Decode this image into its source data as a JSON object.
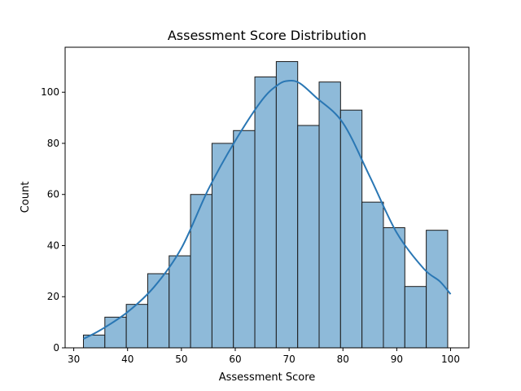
{
  "chart_data": {
    "type": "bar",
    "title": "Assessment Score Distribution",
    "xlabel": "Assessment Score",
    "ylabel": "Count",
    "xlim": [
      28.4,
      103.4
    ],
    "ylim": [
      0,
      117.6
    ],
    "xticks": [
      30,
      40,
      50,
      60,
      70,
      80,
      90,
      100
    ],
    "yticks": [
      0,
      20,
      40,
      60,
      80,
      100
    ],
    "bin_width": 3.98,
    "bins": [
      {
        "start": 31.8,
        "count": 5
      },
      {
        "start": 35.78,
        "count": 12
      },
      {
        "start": 39.76,
        "count": 17
      },
      {
        "start": 43.74,
        "count": 29
      },
      {
        "start": 47.72,
        "count": 36
      },
      {
        "start": 51.7,
        "count": 60
      },
      {
        "start": 55.68,
        "count": 80
      },
      {
        "start": 59.66,
        "count": 85
      },
      {
        "start": 63.64,
        "count": 106
      },
      {
        "start": 67.62,
        "count": 112
      },
      {
        "start": 71.6,
        "count": 87
      },
      {
        "start": 75.58,
        "count": 104
      },
      {
        "start": 79.56,
        "count": 93
      },
      {
        "start": 83.54,
        "count": 57
      },
      {
        "start": 87.52,
        "count": 47
      },
      {
        "start": 91.5,
        "count": 24
      },
      {
        "start": 95.48,
        "count": 46
      }
    ],
    "kde": {
      "x": [
        31.8,
        35,
        40,
        45,
        50,
        55,
        60,
        65,
        68,
        70,
        72,
        75,
        80,
        85,
        90,
        95,
        98,
        100
      ],
      "y": [
        3.5,
        7,
        14,
        24,
        39,
        62,
        81,
        97,
        103,
        104.5,
        103.5,
        98,
        88,
        67,
        45,
        31,
        26,
        21
      ]
    },
    "grid": false,
    "colors": {
      "bar_fill": "#8ebad9",
      "bar_edge": "#1a1a1a",
      "kde_line": "#2a77b4"
    }
  }
}
